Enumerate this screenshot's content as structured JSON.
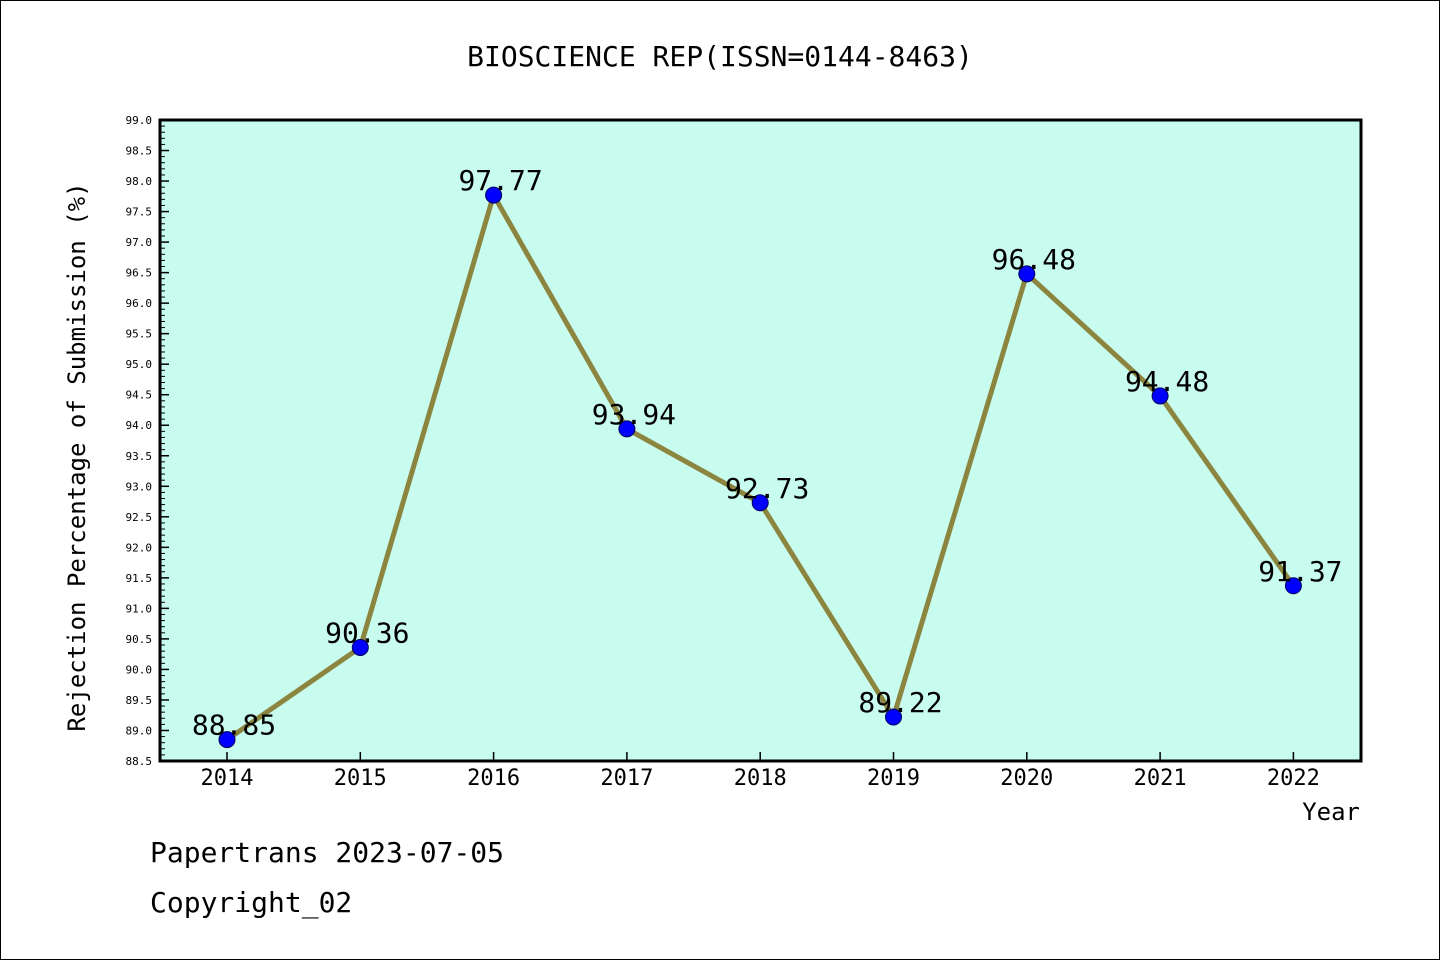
{
  "chart_data": {
    "type": "line",
    "title": "BIOSCIENCE REP(ISSN=0144-8463)",
    "xlabel": "Year",
    "ylabel": "Rejection Percentage of Submission (%)",
    "categories": [
      "2014",
      "2015",
      "2016",
      "2017",
      "2018",
      "2019",
      "2020",
      "2021",
      "2022"
    ],
    "values": [
      88.85,
      90.36,
      97.77,
      93.94,
      92.73,
      89.22,
      96.48,
      94.48,
      91.37
    ],
    "data_labels": [
      "88.85",
      "90.36",
      "97.77",
      "93.94",
      "92.73",
      "89.22",
      "96.48",
      "94.48",
      "91.37"
    ],
    "ylim": [
      88.5,
      99.0
    ],
    "ytick_step": 0.5,
    "yticks": [
      "88.5",
      "89.0",
      "89.5",
      "90.0",
      "90.5",
      "91.0",
      "91.5",
      "92.0",
      "92.5",
      "93.0",
      "93.5",
      "94.0",
      "94.5",
      "95.0",
      "95.5",
      "96.0",
      "96.5",
      "97.0",
      "97.5",
      "98.0",
      "98.5",
      "99.0"
    ],
    "grid": false,
    "colors": {
      "plot_background": "#c8fcee",
      "line": "#8b8540",
      "marker": "#0000ff"
    }
  },
  "footer": {
    "line1": "Papertrans 2023-07-05",
    "line2": "Copyright_02"
  }
}
